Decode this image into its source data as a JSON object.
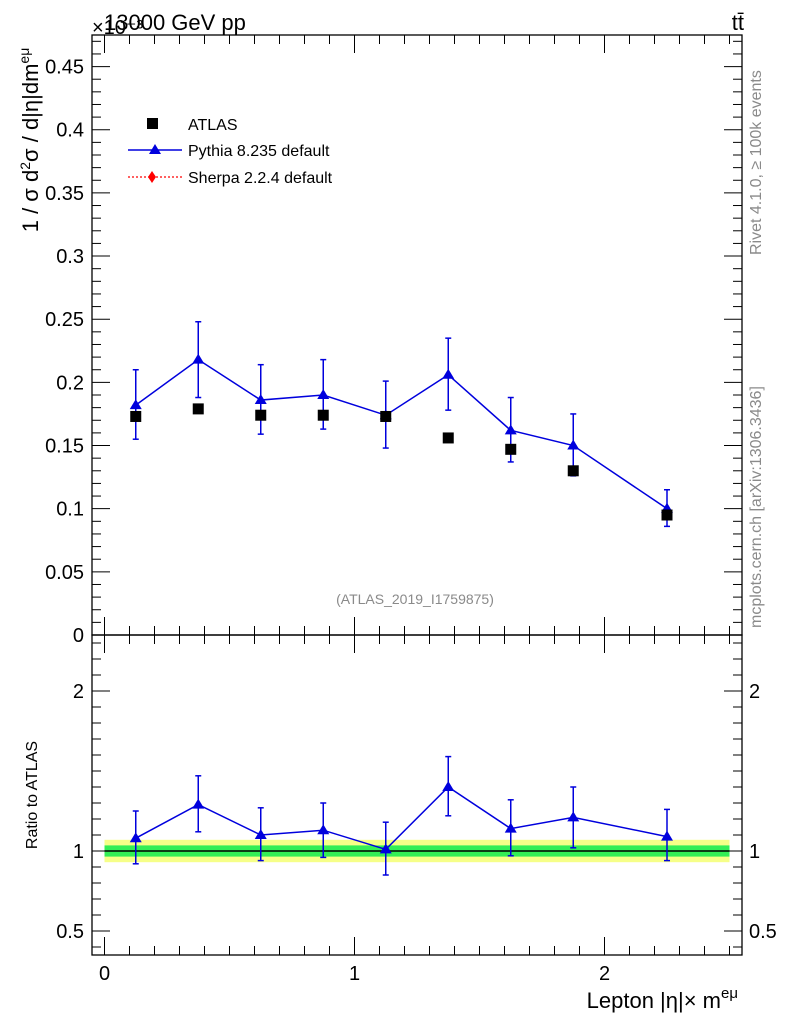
{
  "header": {
    "left_label": "13000 GeV pp",
    "right_label": "tt̄",
    "scale_note": "×10⁻³"
  },
  "side_labels": {
    "rivet": "Rivet 4.1.0, ≥ 100k events",
    "mcplots": "mcplots.cern.ch [arXiv:1306.3436]"
  },
  "analysis_id": "(ATLAS_2019_I1759875)",
  "legend": {
    "atlas": "ATLAS",
    "pythia": "Pythia 8.235 default",
    "sherpa": "Sherpa 2.2.4 default"
  },
  "colors": {
    "atlas": "#000000",
    "pythia": "#0000dd",
    "sherpa": "#ff0000",
    "band_inner": "#33ee55",
    "band_outer": "#f6ff88"
  },
  "chart_data": [
    {
      "panel": "main",
      "type": "scatter",
      "title": "13000 GeV pp",
      "xlabel": "Lepton |η|× m^eμ",
      "ylabel": "1 / σ  d²σ / d|η|dm^eμ",
      "xlim": [
        -0.05,
        2.55
      ],
      "ylim": [
        0,
        0.475
      ],
      "y_scale_factor": "×10⁻³",
      "yticks": [
        0,
        0.05,
        0.1,
        0.15,
        0.2,
        0.25,
        0.3,
        0.35,
        0.4,
        0.45
      ],
      "ytick_labels": [
        "0",
        "0.05",
        "0.1",
        "0.15",
        "0.2",
        "0.25",
        "0.3",
        "0.35",
        "0.4",
        "0.45"
      ],
      "x": [
        0.125,
        0.375,
        0.625,
        0.875,
        1.125,
        1.375,
        1.625,
        1.875,
        2.25
      ],
      "series": [
        {
          "name": "ATLAS",
          "values": [
            0.173,
            0.179,
            0.174,
            0.174,
            0.173,
            0.156,
            0.147,
            0.13,
            0.095
          ]
        },
        {
          "name": "Pythia 8.235 default",
          "values": [
            0.182,
            0.218,
            0.186,
            0.19,
            0.174,
            0.206,
            0.162,
            0.15,
            0.1
          ],
          "err_up": [
            0.028,
            0.03,
            0.028,
            0.028,
            0.027,
            0.029,
            0.026,
            0.025,
            0.015
          ],
          "err_down": [
            0.027,
            0.03,
            0.027,
            0.027,
            0.026,
            0.028,
            0.025,
            0.024,
            0.014
          ]
        },
        {
          "name": "Sherpa 2.2.4 default",
          "values": []
        }
      ]
    },
    {
      "panel": "ratio",
      "type": "line",
      "ylabel": "Ratio to ATLAS",
      "xlabel": "Lepton |η|× m^eμ",
      "xlim": [
        -0.05,
        2.55
      ],
      "ylim": [
        0.35,
        2.35
      ],
      "xticks": [
        0,
        1,
        2
      ],
      "xtick_labels": [
        "0",
        "1",
        "2"
      ],
      "yticks": [
        0.5,
        1,
        2
      ],
      "ytick_labels": [
        "0.5",
        "1",
        "2"
      ],
      "bin_edges": [
        0,
        0.25,
        0.5,
        0.75,
        1.0,
        1.25,
        1.5,
        1.75,
        2.0,
        2.5
      ],
      "band_inner": [
        0.035,
        0.035,
        0.035,
        0.035,
        0.035,
        0.035,
        0.035,
        0.035,
        0.035
      ],
      "band_outer": [
        0.07,
        0.07,
        0.07,
        0.07,
        0.07,
        0.07,
        0.07,
        0.07,
        0.07
      ],
      "x": [
        0.125,
        0.375,
        0.625,
        0.875,
        1.125,
        1.375,
        1.625,
        1.875,
        2.25
      ],
      "series": [
        {
          "name": "Pythia 8.235 default",
          "values": [
            1.08,
            1.29,
            1.1,
            1.13,
            1.01,
            1.4,
            1.14,
            1.21,
            1.09
          ],
          "err_up": [
            0.17,
            0.18,
            0.17,
            0.17,
            0.17,
            0.19,
            0.18,
            0.19,
            0.17
          ],
          "err_down": [
            0.16,
            0.17,
            0.16,
            0.17,
            0.16,
            0.18,
            0.17,
            0.19,
            0.15
          ]
        }
      ]
    }
  ]
}
